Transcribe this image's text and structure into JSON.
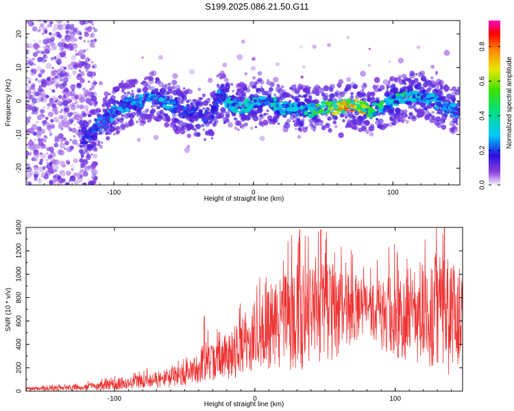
{
  "title": "S199.2025.086.21.50.G11",
  "chart_data": [
    {
      "type": "heatmap",
      "xlabel": "Height of straight line (km)",
      "ylabel": "Frequency (Hz)",
      "xlim": [
        -163,
        148
      ],
      "ylim": [
        -25,
        24
      ],
      "xticks": [
        -100,
        0,
        100
      ],
      "yticks": [
        -20,
        -10,
        0,
        10,
        20
      ],
      "colorbar": {
        "label": "Normalized spectral amplitude",
        "range": [
          0,
          0.95
        ],
        "ticks": [
          0.0,
          0.2,
          0.4,
          0.6,
          0.8
        ],
        "tick_labels": [
          "0.0",
          "0.2",
          "0.4",
          "0.6",
          "0.8"
        ]
      },
      "ridge": {
        "x": [
          -120,
          -110,
          -100,
          -90,
          -80,
          -70,
          -60,
          -50,
          -40,
          -30,
          -25,
          -20,
          -10,
          0,
          10,
          20,
          30,
          40,
          50,
          60,
          70,
          80,
          85,
          90,
          100,
          110,
          120,
          130,
          140,
          148
        ],
        "y": [
          -11,
          -7,
          -3,
          -1,
          0,
          1,
          -1,
          -3,
          -4,
          -5,
          2,
          0,
          -2,
          -1,
          0,
          -2,
          -2,
          -3,
          -2,
          -2,
          -1,
          -2,
          -3,
          -2,
          0,
          1,
          2,
          0,
          -2,
          -3
        ],
        "peak_amplitude": [
          0.2,
          0.25,
          0.3,
          0.3,
          0.3,
          0.3,
          0.3,
          0.25,
          0.25,
          0.2,
          0.3,
          0.35,
          0.4,
          0.4,
          0.4,
          0.4,
          0.35,
          0.45,
          0.7,
          0.8,
          0.85,
          0.75,
          0.55,
          0.5,
          0.45,
          0.45,
          0.35,
          0.35,
          0.3,
          0.3
        ]
      }
    },
    {
      "type": "line",
      "xlabel": "Height of straight line (km)",
      "ylabel": "SNR (10 * v/v)",
      "xlim": [
        -163,
        148
      ],
      "ylim": [
        0,
        1400
      ],
      "xticks": [
        -100,
        0,
        100
      ],
      "yticks": [
        0,
        200,
        400,
        600,
        800,
        1000,
        1200,
        1400
      ],
      "color": "#ee3333",
      "envelope": {
        "x": [
          -163,
          -140,
          -120,
          -100,
          -80,
          -60,
          -45,
          -36,
          -30,
          -20,
          -10,
          0,
          10,
          20,
          25,
          30,
          40,
          50,
          60,
          70,
          80,
          90,
          100,
          110,
          120,
          130,
          140,
          148
        ],
        "mean": [
          20,
          25,
          35,
          55,
          85,
          110,
          160,
          260,
          240,
          300,
          380,
          450,
          540,
          580,
          600,
          640,
          640,
          660,
          680,
          700,
          720,
          650,
          650,
          660,
          660,
          680,
          620,
          560
        ],
        "amp": [
          15,
          20,
          30,
          45,
          60,
          80,
          110,
          180,
          150,
          200,
          260,
          300,
          350,
          400,
          450,
          480,
          450,
          430,
          380,
          300,
          200,
          300,
          380,
          420,
          450,
          480,
          500,
          420
        ]
      },
      "notable_peaks": [
        {
          "x": -36,
          "y": 640
        },
        {
          "x": 32,
          "y": 1380
        },
        {
          "x": 47,
          "y": 1380
        },
        {
          "x": 135,
          "y": 1400
        }
      ]
    }
  ]
}
